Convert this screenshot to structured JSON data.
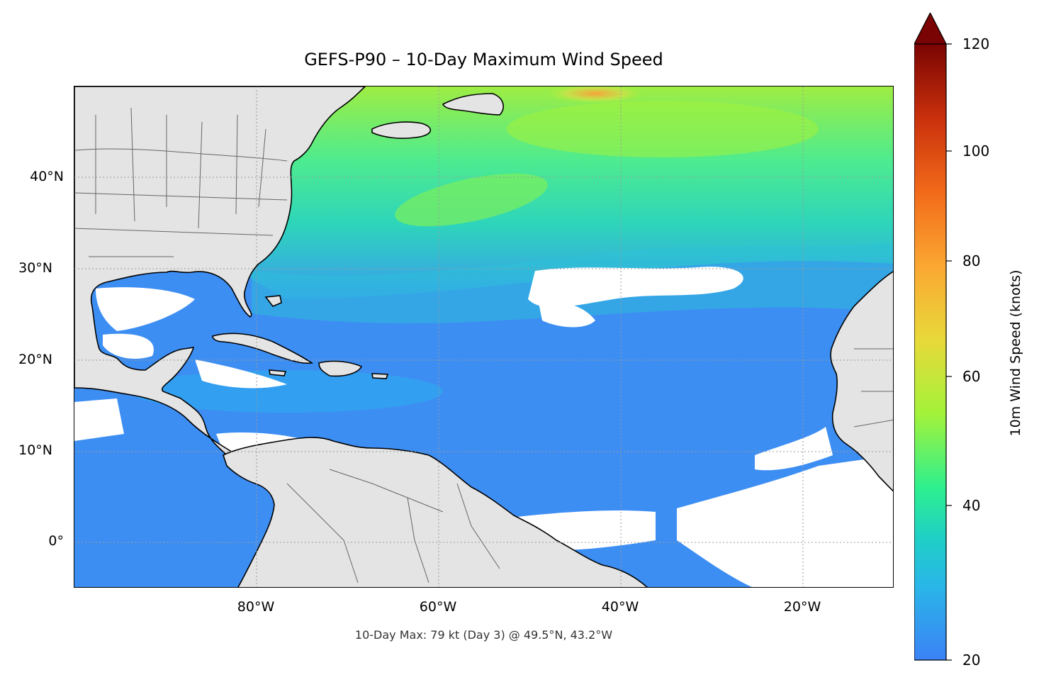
{
  "title": "GEFS-P90 – 10-Day Maximum Wind Speed",
  "footnote": "10-Day Max: 79 kt (Day 3) @ 49.5°N, 43.2°W",
  "map": {
    "lat_labels": [
      "40°N",
      "30°N",
      "20°N",
      "10°N",
      "0°"
    ],
    "lon_labels": [
      "80°W",
      "60°W",
      "40°W",
      "20°W"
    ],
    "extent": {
      "lon_min": -100,
      "lon_max": -10,
      "lat_min": -5,
      "lat_max": 50
    },
    "land_color": "#e4e4e4"
  },
  "colorbar": {
    "label": "10m Wind Speed (knots)",
    "ticks": [
      "20",
      "40",
      "60",
      "80",
      "100",
      "120"
    ],
    "min": 20,
    "max": 120,
    "extend": "max",
    "colors": [
      "#3b82f6",
      "#29b6e8",
      "#1fd0c5",
      "#2ef08e",
      "#a3f23a",
      "#e8d93a",
      "#fba732",
      "#f26a1a",
      "#c9300c",
      "#7a0403"
    ]
  },
  "max_marker": {
    "value_kt": 79,
    "day": 3,
    "lat": 49.5,
    "lon": -43.2
  }
}
